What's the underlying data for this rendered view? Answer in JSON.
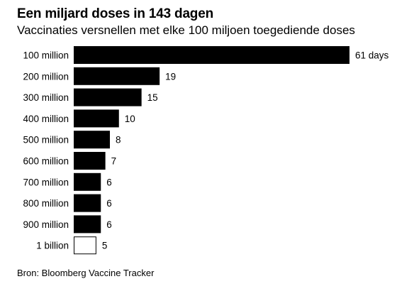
{
  "header": {
    "title": "Een miljard doses in 143 dagen",
    "subtitle": "Vaccinaties versnellen met elke 100 miljoen toegediende doses"
  },
  "footer": {
    "source": "Bron: Bloomberg Vaccine Tracker"
  },
  "chart_data": {
    "type": "bar",
    "orientation": "horizontal",
    "title": "Een miljard doses in 143 dagen",
    "subtitle": "Vaccinaties versnellen met elke 100 miljoen toegediende doses",
    "categories": [
      "100 million",
      "200 million",
      "300 million",
      "400 million",
      "500 million",
      "600 million",
      "700 million",
      "800 million",
      "900 million",
      "1 billion"
    ],
    "values": [
      61,
      19,
      15,
      10,
      8,
      7,
      6,
      6,
      6,
      5
    ],
    "data_labels": [
      "61 days",
      "19",
      "15",
      "10",
      "8",
      "7",
      "6",
      "6",
      "6",
      "5"
    ],
    "bar_fill": [
      "#000000",
      "#000000",
      "#000000",
      "#000000",
      "#000000",
      "#000000",
      "#000000",
      "#000000",
      "#000000",
      "#ffffff"
    ],
    "bar_stroke": "#000000",
    "xlim": [
      0,
      61
    ],
    "grid": false,
    "legend": "none",
    "xlabel": "",
    "ylabel": ""
  }
}
